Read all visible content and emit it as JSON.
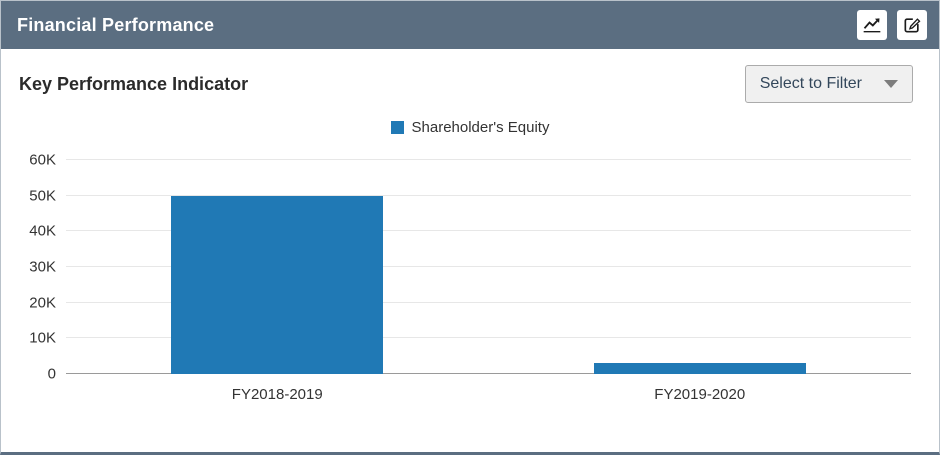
{
  "panel": {
    "title": "Financial Performance",
    "header_icons": [
      {
        "name": "line-chart-icon"
      },
      {
        "name": "edit-icon"
      }
    ]
  },
  "toolbar": {
    "heading": "Key Performance Indicator",
    "filter_label": "Select to Filter"
  },
  "colors": {
    "header_bg": "#5b6e81",
    "accent": "#2079b5"
  },
  "chart_data": {
    "type": "bar",
    "title": "",
    "legend": [
      "Shareholder's Equity"
    ],
    "legend_position": "top",
    "categories": [
      "FY2018-2019",
      "FY2019-2020"
    ],
    "values": [
      50000,
      3000
    ],
    "yticks": [
      "0",
      "10K",
      "20K",
      "30K",
      "40K",
      "50K",
      "60K"
    ],
    "ylim": [
      0,
      60000
    ],
    "grid": true,
    "bar_color": "#2079b5"
  }
}
